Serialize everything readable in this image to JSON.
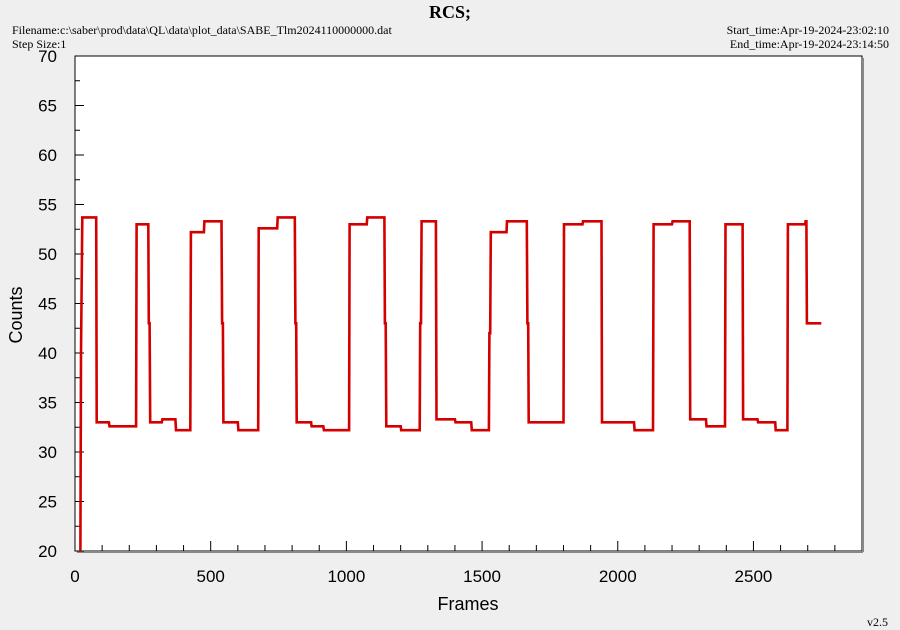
{
  "header": {
    "title": "RCS;",
    "filename": "Filename:c:\\saber\\prod\\data\\QL\\data\\plot_data\\SABE_Tlm2024110000000.dat",
    "step_size": "Step Size:1",
    "start_time": "Start_time:Apr-19-2024-23:02:10",
    "end_time": "End_time:Apr-19-2024-23:14:50",
    "version": "v2.5"
  },
  "chart_data": {
    "type": "line",
    "title": "RCS;",
    "xlabel": "Frames",
    "ylabel": "Counts",
    "xlim": [
      0,
      2900
    ],
    "ylim": [
      20,
      70
    ],
    "xticks": [
      0,
      500,
      1000,
      1500,
      2000,
      2500
    ],
    "yticks": [
      20,
      25,
      30,
      35,
      40,
      45,
      50,
      55,
      60,
      65,
      70
    ],
    "grid": false,
    "line_color": "#d40000",
    "series": [
      {
        "x": [
          20,
          22,
          27,
          30,
          78,
          80,
          125,
          127,
          225,
          227,
          270,
          272,
          275,
          277,
          320,
          322,
          370,
          372,
          425,
          427,
          475,
          477,
          540,
          542,
          545,
          547,
          600,
          602,
          675,
          677,
          745,
          747,
          810,
          812,
          815,
          817,
          870,
          872,
          915,
          917,
          1010,
          1012,
          1075,
          1077,
          1140,
          1142,
          1145,
          1147,
          1200,
          1202,
          1270,
          1272,
          1275,
          1277,
          1330,
          1332,
          1400,
          1402,
          1460,
          1462,
          1525,
          1527,
          1530,
          1532,
          1590,
          1592,
          1665,
          1667,
          1670,
          1672,
          1775,
          1777,
          1800,
          1802,
          1870,
          1872,
          1940,
          1942,
          2060,
          2062,
          2130,
          2132,
          2200,
          2202,
          2265,
          2267,
          2325,
          2327,
          2395,
          2397,
          2460,
          2462,
          2515,
          2517,
          2580,
          2582,
          2625,
          2627,
          2690,
          2692,
          2695,
          2697,
          2750
        ],
        "y": [
          20,
          40,
          53.7,
          53.7,
          53.7,
          33,
          33,
          32.6,
          32.6,
          53,
          53,
          43,
          43,
          33,
          33,
          33.3,
          33.3,
          32.2,
          32.2,
          52.2,
          52.2,
          53.3,
          53.3,
          43,
          43,
          33,
          33,
          32.2,
          32.2,
          52.6,
          52.6,
          53.7,
          53.7,
          43,
          43,
          33,
          33,
          32.6,
          32.6,
          32.2,
          32.2,
          53,
          53,
          53.7,
          53.7,
          43,
          43,
          32.6,
          32.6,
          32.2,
          32.2,
          43,
          43,
          53.3,
          53.3,
          33.3,
          33.3,
          33,
          33,
          32.2,
          32.2,
          42,
          42,
          52.2,
          52.2,
          53.3,
          53.3,
          43,
          43,
          33,
          33,
          33,
          33,
          53,
          53,
          53.3,
          53.3,
          33,
          33,
          32.2,
          32.2,
          53,
          53,
          53.3,
          53.3,
          33.3,
          33.3,
          32.6,
          32.6,
          53,
          53,
          33.3,
          33.3,
          33,
          33,
          32.2,
          32.2,
          53,
          53,
          53.3,
          53.3,
          43,
          43
        ]
      }
    ]
  }
}
